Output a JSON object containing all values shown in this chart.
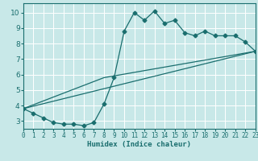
{
  "xlabel": "Humidex (Indice chaleur)",
  "bg_color": "#c8e8e8",
  "grid_color": "#ffffff",
  "line_color": "#1a6e6e",
  "xlim": [
    0,
    23
  ],
  "ylim": [
    2.5,
    10.6
  ],
  "yticks": [
    3,
    4,
    5,
    6,
    7,
    8,
    9,
    10
  ],
  "xticks": [
    0,
    1,
    2,
    3,
    4,
    5,
    6,
    7,
    8,
    9,
    10,
    11,
    12,
    13,
    14,
    15,
    16,
    17,
    18,
    19,
    20,
    21,
    22,
    23
  ],
  "line1_x": [
    0,
    1,
    2,
    3,
    4,
    5,
    6,
    7,
    8,
    9,
    10,
    11,
    12,
    13,
    14,
    15,
    16,
    17,
    18,
    19,
    20,
    21,
    22,
    23
  ],
  "line1_y": [
    3.8,
    3.5,
    3.2,
    2.9,
    2.8,
    2.8,
    2.7,
    2.9,
    4.1,
    5.8,
    8.8,
    10.0,
    9.5,
    10.1,
    9.3,
    9.5,
    8.7,
    8.5,
    8.8,
    8.5,
    8.5,
    8.5,
    8.1,
    7.5
  ],
  "line2_x": [
    0,
    23
  ],
  "line2_y": [
    3.8,
    7.5
  ],
  "line3_x": [
    0,
    8,
    23
  ],
  "line3_y": [
    3.8,
    5.8,
    7.5
  ],
  "marker_size": 2.5
}
